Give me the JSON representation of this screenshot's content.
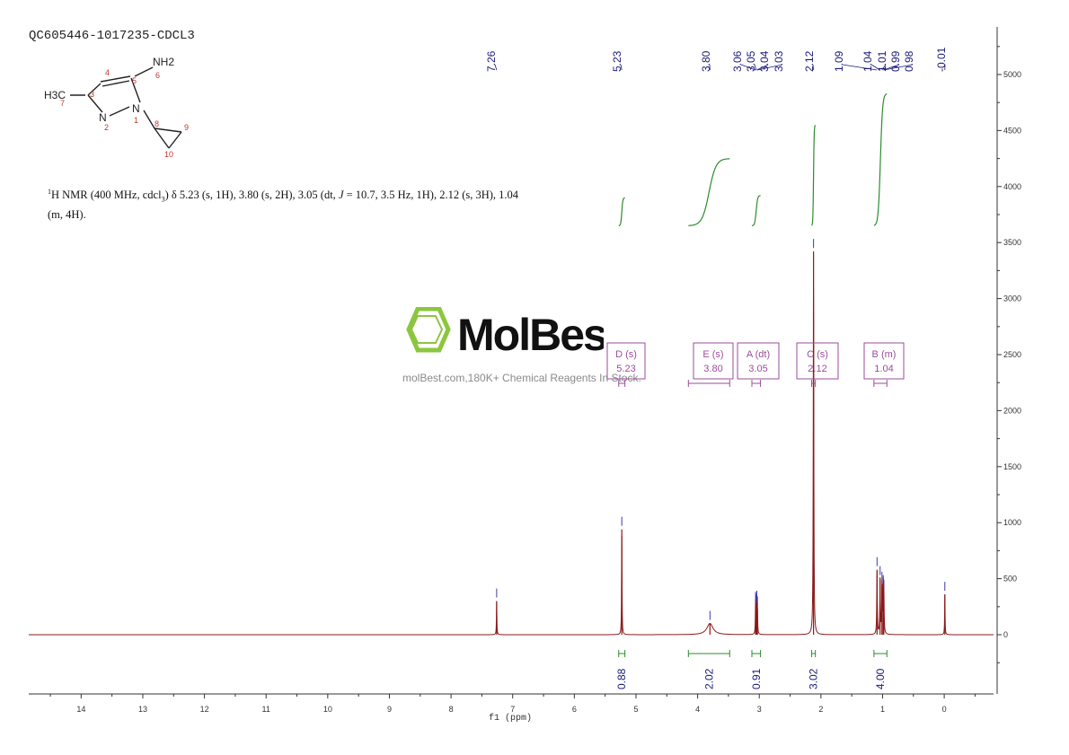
{
  "sample_id": "QC605446-1017235-CDCL3",
  "nmr_description": {
    "nucleus_mass": "1",
    "line1_before_J": "H NMR (400 MHz, cdcl",
    "solvent_sub": "3",
    "line1_after_sub": ") δ 5.23 (s, 1H), 3.80 (s, 2H), 3.05 (dt, ",
    "j_symbol": "J",
    "line1_after_J": " = 10.7, 3.5 Hz, 1H), 2.12 (s, 3H), 1.04",
    "line2": "(m, 4H)."
  },
  "structure": {
    "atoms": [
      "NH2",
      "H3C",
      "N",
      "N"
    ],
    "atom_numbers": [
      "1",
      "2",
      "3",
      "4",
      "5",
      "6",
      "7",
      "8",
      "9",
      "10"
    ]
  },
  "watermark": {
    "brand": "MolBest",
    "tagline": "molBest.com,180K+ Chemical Reagents In Stock."
  },
  "colors": {
    "spectrum": "#8b1a1a",
    "integral": "#2e8b2e",
    "peak_label": "#1a1a7a",
    "multiplet_box": "#9a4d9a",
    "logo_green": "#8cc63f"
  },
  "chart_data": {
    "type": "line",
    "xlabel": "f1 (ppm)",
    "xlim": [
      14.85,
      -0.8
    ],
    "x_ticks": [
      14,
      13,
      12,
      11,
      10,
      9,
      8,
      7,
      6,
      5,
      4,
      3,
      2,
      1,
      0
    ],
    "ylim": [
      -500,
      5400
    ],
    "y_ticks": [
      5000,
      4500,
      4000,
      3500,
      3000,
      2500,
      2000,
      1500,
      1000,
      500,
      0
    ],
    "peaks": [
      {
        "ppm": 7.26,
        "intensity": 300,
        "width": 0.004
      },
      {
        "ppm": 5.23,
        "intensity": 940,
        "width": 0.004
      },
      {
        "ppm": 3.8,
        "intensity": 100,
        "width": 0.06
      },
      {
        "ppm": 3.06,
        "intensity": 270,
        "width": 0.004
      },
      {
        "ppm": 3.05,
        "intensity": 250,
        "width": 0.004
      },
      {
        "ppm": 3.04,
        "intensity": 280,
        "width": 0.004
      },
      {
        "ppm": 3.03,
        "intensity": 230,
        "width": 0.004
      },
      {
        "ppm": 2.12,
        "intensity": 3420,
        "width": 0.005
      },
      {
        "ppm": 1.09,
        "intensity": 580,
        "width": 0.005
      },
      {
        "ppm": 1.04,
        "intensity": 500,
        "width": 0.005
      },
      {
        "ppm": 1.01,
        "intensity": 450,
        "width": 0.005
      },
      {
        "ppm": 0.99,
        "intensity": 420,
        "width": 0.005
      },
      {
        "ppm": 0.98,
        "intensity": 380,
        "width": 0.005
      },
      {
        "ppm": -0.01,
        "intensity": 360,
        "width": 0.004
      }
    ],
    "peak_labels": [
      "7.26",
      "5.23",
      "3.80",
      "3.06",
      "3.05",
      "3.04",
      "3.03",
      "2.12",
      "1.09",
      "1.04",
      "1.01",
      "0.99",
      "0.98",
      "-0.01"
    ],
    "peak_label_ppm": [
      7.26,
      5.23,
      3.8,
      3.06,
      3.05,
      3.04,
      3.03,
      2.12,
      1.09,
      1.04,
      1.01,
      0.99,
      0.98,
      -0.01
    ],
    "multiplets": [
      {
        "letter": "D (s)",
        "shift": "5.23",
        "from": 5.28,
        "to": 5.18
      },
      {
        "letter": "E (s)",
        "shift": "3.80",
        "from": 4.15,
        "to": 3.48
      },
      {
        "letter": "A (dt)",
        "shift": "3.05",
        "from": 3.12,
        "to": 2.98
      },
      {
        "letter": "C (s)",
        "shift": "2.12",
        "from": 2.15,
        "to": 2.09
      },
      {
        "letter": "B (m)",
        "shift": "1.04",
        "from": 1.14,
        "to": 0.93
      }
    ],
    "integrals": [
      {
        "value": "0.88",
        "from": 5.28,
        "to": 5.18
      },
      {
        "value": "2.02",
        "from": 4.15,
        "to": 3.48
      },
      {
        "value": "0.91",
        "from": 3.12,
        "to": 2.98
      },
      {
        "value": "3.02",
        "from": 2.15,
        "to": 2.09
      },
      {
        "value": "4.00",
        "from": 1.14,
        "to": 0.93
      }
    ],
    "integral_curves": [
      {
        "from": 5.28,
        "to": 5.18,
        "low": 3650,
        "high": 3900
      },
      {
        "from": 4.15,
        "to": 3.48,
        "low": 3650,
        "high": 4250
      },
      {
        "from": 3.12,
        "to": 2.98,
        "low": 3650,
        "high": 3920
      },
      {
        "from": 2.15,
        "to": 2.09,
        "low": 3650,
        "high": 4550
      },
      {
        "from": 1.14,
        "to": 0.93,
        "low": 3650,
        "high": 4830
      }
    ]
  }
}
